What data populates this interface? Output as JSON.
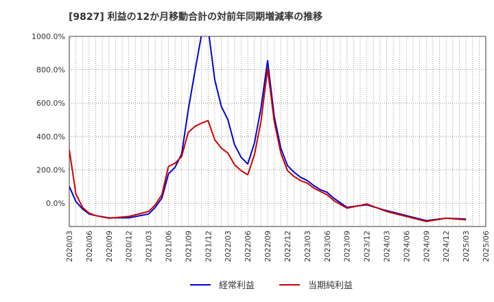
{
  "chart_data": {
    "type": "line",
    "title": "[9827]  利益の12か月移動合計の対前年同期増減率の推移",
    "xlabel": "",
    "ylabel": "",
    "ylim": [
      -140,
      1000
    ],
    "yticks": [
      0,
      200,
      400,
      600,
      800,
      1000
    ],
    "ytick_labels": [
      "0.0%",
      "200.0%",
      "400.0%",
      "600.0%",
      "800.0%",
      "1000.0%"
    ],
    "x_start": "2020/03",
    "x_end": "2025/06",
    "tick_labels": [
      "2020/03",
      "2020/06",
      "2020/09",
      "2020/12",
      "2021/03",
      "2021/06",
      "2021/09",
      "2021/12",
      "2022/03",
      "2022/06",
      "2022/09",
      "2022/12",
      "2023/03",
      "2023/06",
      "2023/09",
      "2023/12",
      "2024/03",
      "2024/06",
      "2024/09",
      "2024/12",
      "2025/03",
      "2025/06"
    ],
    "grid": true,
    "series": [
      {
        "name": "経常利益",
        "color": "#0000cc",
        "x": [
          "2020/03",
          "2020/04",
          "2020/05",
          "2020/06",
          "2020/07",
          "2020/09",
          "2020/12",
          "2021/03",
          "2021/04",
          "2021/05",
          "2021/06",
          "2021/07",
          "2021/08",
          "2021/09",
          "2021/10",
          "2021/11",
          "2021/12",
          "2022/01",
          "2022/02",
          "2022/03",
          "2022/04",
          "2022/05",
          "2022/06",
          "2022/07",
          "2022/08",
          "2022/09",
          "2022/10",
          "2022/11",
          "2022/12",
          "2023/01",
          "2023/02",
          "2023/03",
          "2023/04",
          "2023/05",
          "2023/06",
          "2023/07",
          "2023/09",
          "2023/12",
          "2024/03",
          "2024/06",
          "2024/09",
          "2024/12",
          "2025/03"
        ],
        "values": [
          100,
          10,
          -35,
          -65,
          -75,
          -88,
          -88,
          -65,
          -25,
          30,
          175,
          215,
          295,
          560,
          790,
          1010,
          1050,
          740,
          580,
          500,
          350,
          275,
          235,
          360,
          570,
          855,
          520,
          330,
          225,
          185,
          155,
          135,
          105,
          80,
          65,
          30,
          -25,
          -10,
          -45,
          -75,
          -105,
          -90,
          -95
        ]
      },
      {
        "name": "当期純利益",
        "color": "#cc0000",
        "x": [
          "2020/03",
          "2020/04",
          "2020/05",
          "2020/06",
          "2020/07",
          "2020/09",
          "2020/12",
          "2021/03",
          "2021/04",
          "2021/05",
          "2021/06",
          "2021/07",
          "2021/08",
          "2021/09",
          "2021/10",
          "2021/11",
          "2021/12",
          "2022/01",
          "2022/02",
          "2022/03",
          "2022/04",
          "2022/05",
          "2022/06",
          "2022/07",
          "2022/08",
          "2022/09",
          "2022/10",
          "2022/11",
          "2022/12",
          "2023/01",
          "2023/02",
          "2023/03",
          "2023/04",
          "2023/05",
          "2023/06",
          "2023/07",
          "2023/09",
          "2023/12",
          "2024/03",
          "2024/06",
          "2024/09",
          "2024/12",
          "2025/03"
        ],
        "values": [
          320,
          55,
          -25,
          -60,
          -75,
          -90,
          -80,
          -50,
          -10,
          50,
          220,
          240,
          280,
          425,
          460,
          480,
          495,
          380,
          330,
          300,
          230,
          195,
          170,
          290,
          490,
          805,
          490,
          300,
          195,
          160,
          135,
          120,
          90,
          70,
          50,
          15,
          -30,
          -5,
          -50,
          -80,
          -110,
          -90,
          -100
        ]
      }
    ]
  }
}
